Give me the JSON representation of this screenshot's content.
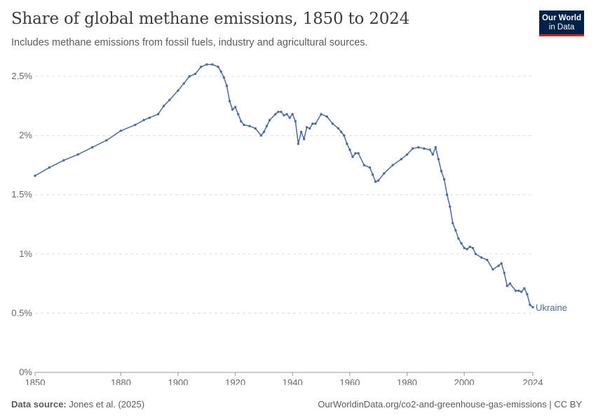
{
  "header": {
    "title": "Share of global methane emissions, 1850 to 2024",
    "subtitle": "Includes methane emissions from fossil fuels, industry and agricultural sources.",
    "logo_line1": "Our World",
    "logo_line2": "in Data"
  },
  "footer": {
    "source_label": "Data source:",
    "source_value": "Jones et al. (2025)",
    "url": "OurWorldinData.org/co2-and-greenhouse-gas-emissions | CC BY"
  },
  "colors": {
    "series": "#4c6a9c",
    "grid": "#dddddd",
    "axis": "#999999",
    "logo_bg": "#002147",
    "logo_accent": "#ce261e"
  },
  "chart_data": {
    "type": "line",
    "title": "Share of global methane emissions, 1850 to 2024",
    "xlabel": "",
    "ylabel": "",
    "xlim": [
      1850,
      2024
    ],
    "ylim": [
      0,
      2.5
    ],
    "x_ticks": [
      1850,
      1880,
      1900,
      1920,
      1940,
      1960,
      1980,
      2000,
      2024
    ],
    "y_ticks": [
      0,
      0.5,
      1,
      1.5,
      2,
      2.5
    ],
    "y_tick_labels": [
      "0%",
      "0.5%",
      "1%",
      "1.5%",
      "2%",
      "2.5%"
    ],
    "grid": "horizontal dashed",
    "series": [
      {
        "name": "Ukraine",
        "x": [
          1850,
          1855,
          1860,
          1865,
          1870,
          1875,
          1880,
          1885,
          1888,
          1890,
          1893,
          1895,
          1897,
          1900,
          1902,
          1904,
          1906,
          1908,
          1910,
          1912,
          1914,
          1915,
          1916,
          1917,
          1918,
          1919,
          1920,
          1921,
          1922,
          1923,
          1925,
          1927,
          1929,
          1930,
          1931,
          1932,
          1934,
          1935,
          1936,
          1937,
          1938,
          1939,
          1940,
          1941,
          1942,
          1943,
          1944,
          1945,
          1946,
          1947,
          1948,
          1950,
          1952,
          1954,
          1956,
          1957,
          1958,
          1959,
          1960,
          1961,
          1962,
          1963,
          1965,
          1967,
          1968,
          1969,
          1970,
          1972,
          1975,
          1978,
          1980,
          1982,
          1984,
          1986,
          1988,
          1989,
          1990,
          1991,
          1992,
          1993,
          1994,
          1995,
          1996,
          1997,
          1998,
          1999,
          2000,
          2001,
          2002,
          2003,
          2004,
          2006,
          2008,
          2010,
          2012,
          2013,
          2014,
          2015,
          2016,
          2018,
          2019,
          2020,
          2021,
          2022,
          2023,
          2024
        ],
        "values": [
          1.66,
          1.73,
          1.79,
          1.84,
          1.9,
          1.96,
          2.04,
          2.09,
          2.13,
          2.15,
          2.18,
          2.25,
          2.3,
          2.38,
          2.44,
          2.5,
          2.52,
          2.58,
          2.6,
          2.6,
          2.58,
          2.54,
          2.49,
          2.42,
          2.29,
          2.22,
          2.24,
          2.18,
          2.12,
          2.09,
          2.08,
          2.06,
          2.0,
          2.03,
          2.08,
          2.13,
          2.18,
          2.2,
          2.2,
          2.17,
          2.18,
          2.15,
          2.18,
          2.12,
          1.93,
          2.03,
          1.97,
          2.07,
          2.06,
          2.1,
          2.1,
          2.18,
          2.16,
          2.1,
          2.06,
          2.03,
          2.0,
          1.93,
          1.88,
          1.82,
          1.85,
          1.85,
          1.75,
          1.73,
          1.67,
          1.61,
          1.62,
          1.68,
          1.75,
          1.8,
          1.84,
          1.89,
          1.9,
          1.89,
          1.88,
          1.84,
          1.9,
          1.8,
          1.7,
          1.63,
          1.5,
          1.4,
          1.26,
          1.2,
          1.13,
          1.09,
          1.05,
          1.04,
          1.06,
          1.05,
          1.0,
          0.97,
          0.95,
          0.87,
          0.9,
          0.92,
          0.84,
          0.73,
          0.75,
          0.69,
          0.69,
          0.68,
          0.71,
          0.66,
          0.57,
          0.55
        ]
      }
    ]
  }
}
